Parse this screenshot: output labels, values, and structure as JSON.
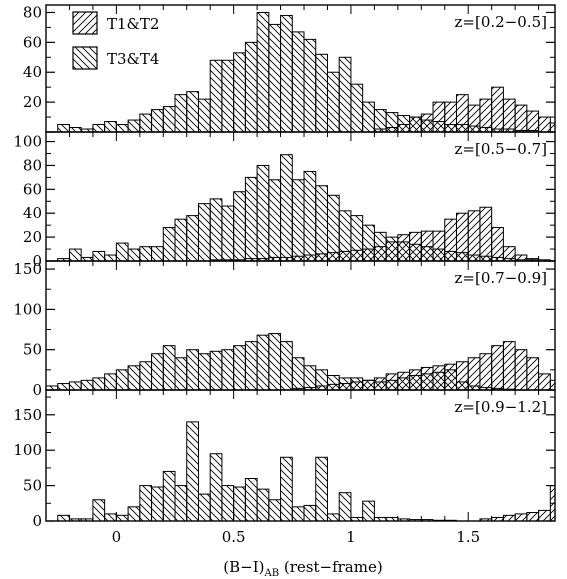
{
  "chart_data": {
    "type": "bar",
    "xlabel_main": "(B−I)",
    "xlabel_sub": "AB",
    "xlabel_tail": " (rest−frame)",
    "xlim": [
      -0.3,
      1.87
    ],
    "bin_width": 0.05,
    "x_ticks": [
      0,
      0.5,
      1,
      1.5
    ],
    "x_tick_labels": [
      "0",
      "0.5",
      "1",
      "1.5"
    ],
    "legend": [
      {
        "name": "T1&T2",
        "hatch": "forward"
      },
      {
        "name": "T3&T4",
        "hatch": "backward"
      }
    ],
    "panels": [
      {
        "label": "z=[0.2−0.5]",
        "ylim": [
          0,
          85
        ],
        "y_ticks": [
          0,
          20,
          40,
          60,
          80
        ],
        "y_tick_labels": [
          "",
          "20",
          "40",
          "60",
          "80"
        ],
        "bin_start": -0.25,
        "series": [
          {
            "name": "T1&T2",
            "hatch": "forward",
            "values": [
              0,
              0,
              0,
              0,
              0,
              0,
              0,
              0,
              0,
              0,
              0,
              0,
              0,
              0,
              0,
              0,
              0,
              0,
              0,
              0,
              0,
              0,
              0,
              0,
              0,
              0,
              0,
              2,
              3,
              5,
              10,
              12,
              20,
              20,
              25,
              18,
              22,
              30,
              22,
              18,
              14,
              10,
              6,
              4,
              2,
              1,
              0
            ]
          },
          {
            "name": "T3&T4",
            "hatch": "backward",
            "values": [
              5,
              3,
              2,
              5,
              7,
              5,
              8,
              12,
              15,
              17,
              25,
              27,
              22,
              48,
              48,
              53,
              60,
              80,
              72,
              78,
              67,
              62,
              52,
              40,
              50,
              32,
              20,
              15,
              13,
              11,
              10,
              8,
              7,
              5,
              5,
              4,
              3,
              2,
              2,
              1,
              1,
              0,
              0,
              0,
              0,
              0,
              0
            ]
          }
        ]
      },
      {
        "label": "z=[0.5−0.7]",
        "ylim": [
          0,
          108
        ],
        "y_ticks": [
          0,
          20,
          40,
          60,
          80,
          100
        ],
        "y_tick_labels": [
          "0",
          "20",
          "40",
          "60",
          "80",
          "100"
        ],
        "bin_start": -0.25,
        "series": [
          {
            "name": "T1&T2",
            "hatch": "forward",
            "values": [
              0,
              0,
              0,
              0,
              0,
              0,
              0,
              0,
              0,
              0,
              0,
              0,
              0,
              1,
              1,
              1,
              2,
              2,
              3,
              3,
              4,
              5,
              6,
              7,
              8,
              9,
              10,
              12,
              16,
              22,
              24,
              25,
              25,
              35,
              40,
              42,
              45,
              28,
              12,
              5,
              2,
              1,
              0,
              0,
              0,
              0,
              0
            ]
          },
          {
            "name": "T3&T4",
            "hatch": "backward",
            "values": [
              2,
              10,
              3,
              8,
              5,
              15,
              10,
              12,
              12,
              28,
              35,
              38,
              48,
              52,
              46,
              58,
              70,
              80,
              68,
              89,
              68,
              75,
              63,
              55,
              42,
              38,
              30,
              24,
              20,
              16,
              14,
              12,
              10,
              8,
              7,
              5,
              4,
              3,
              2,
              1,
              1,
              0,
              0,
              0,
              0,
              0,
              0
            ]
          }
        ]
      },
      {
        "label": "z=[0.7−0.9]",
        "ylim": [
          0,
          160
        ],
        "y_ticks": [
          0,
          50,
          100,
          150
        ],
        "y_tick_labels": [
          "0",
          "50",
          "100",
          "150"
        ],
        "bin_start": -0.3,
        "series": [
          {
            "name": "T1&T2",
            "hatch": "forward",
            "values": [
              0,
              0,
              0,
              0,
              0,
              0,
              0,
              0,
              0,
              0,
              0,
              0,
              0,
              0,
              0,
              0,
              0,
              0,
              0,
              0,
              0,
              2,
              3,
              5,
              7,
              8,
              10,
              12,
              15,
              20,
              22,
              25,
              28,
              30,
              32,
              35,
              40,
              45,
              55,
              60,
              50,
              40,
              20,
              12,
              8,
              5,
              3,
              0
            ]
          },
          {
            "name": "T3&T4",
            "hatch": "backward",
            "values": [
              5,
              8,
              10,
              12,
              15,
              20,
              25,
              30,
              35,
              45,
              55,
              40,
              50,
              45,
              48,
              50,
              55,
              60,
              68,
              70,
              60,
              40,
              30,
              25,
              18,
              15,
              15,
              12,
              10,
              12,
              15,
              18,
              20,
              22,
              25,
              10,
              5,
              3,
              2,
              1,
              0,
              0,
              0,
              0,
              0,
              0,
              0,
              0
            ]
          }
        ]
      },
      {
        "label": "z=[0.9−1.2]",
        "ylim": [
          0,
          185
        ],
        "y_ticks": [
          0,
          50,
          100,
          150
        ],
        "y_tick_labels": [
          "0",
          "50",
          "100",
          "150"
        ],
        "bin_start": -0.3,
        "series": [
          {
            "name": "T1&T2",
            "hatch": "forward",
            "values": [
              0,
              0,
              0,
              0,
              0,
              0,
              0,
              0,
              0,
              0,
              0,
              0,
              0,
              0,
              0,
              0,
              0,
              0,
              0,
              0,
              0,
              0,
              0,
              0,
              0,
              0,
              0,
              0,
              0,
              0,
              0,
              0,
              0,
              0,
              0,
              0,
              0,
              3,
              5,
              8,
              10,
              12,
              15,
              50,
              65,
              20,
              8,
              3
            ]
          },
          {
            "name": "T3&T4",
            "hatch": "backward",
            "values": [
              0,
              8,
              3,
              3,
              30,
              10,
              8,
              20,
              50,
              48,
              70,
              50,
              140,
              38,
              95,
              50,
              48,
              60,
              45,
              30,
              90,
              20,
              22,
              90,
              10,
              40,
              5,
              28,
              5,
              5,
              3,
              2,
              2,
              1,
              1,
              0,
              0,
              0,
              0,
              0,
              0,
              0,
              0,
              0,
              0,
              0,
              0,
              0
            ]
          }
        ]
      }
    ]
  }
}
